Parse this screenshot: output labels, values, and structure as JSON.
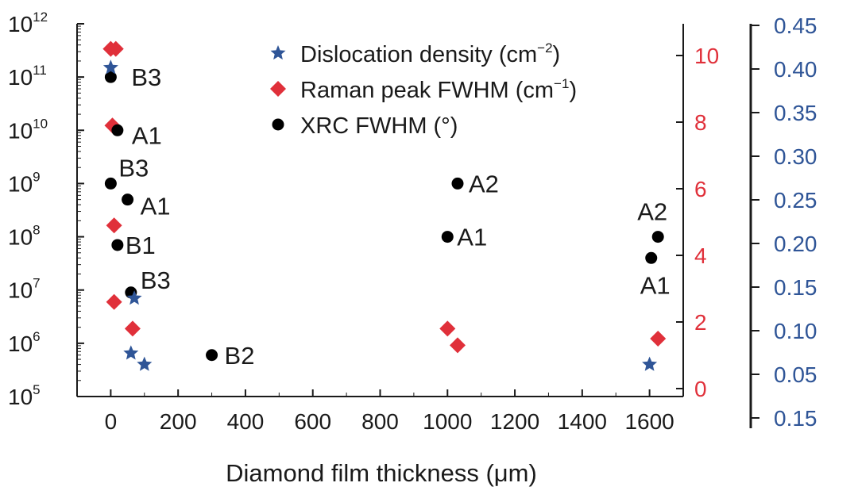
{
  "chart_data": {
    "type": "scatter",
    "title": "",
    "xlabel": "Diamond film thickness (μm)",
    "xlim": [
      -100,
      1700
    ],
    "x_ticks": [
      "0",
      "200",
      "400",
      "600",
      "800",
      "1000",
      "1200",
      "1400",
      "1600"
    ],
    "axes": {
      "left": {
        "scale": "log",
        "exp_ticks": [
          5,
          6,
          7,
          8,
          9,
          10,
          11,
          12
        ],
        "tick_base": "10",
        "color": "#1a1a1a"
      },
      "right": {
        "ylim": [
          0,
          11
        ],
        "ticks": [
          "0",
          "2",
          "4",
          "6",
          "8",
          "10"
        ],
        "color": "#e0303a"
      },
      "right_outer": {
        "ticks": [
          "0.15",
          "0.05",
          "0.10",
          "0.15",
          "0.20",
          "0.25",
          "0.30",
          "0.35",
          "0.40",
          "0.45"
        ],
        "color": "#2f5597"
      }
    },
    "legend": {
      "position": "top-center",
      "entries": [
        {
          "prefix": "Dislocation density (cm",
          "sup": "−2",
          "suffix": ")"
        },
        {
          "prefix": "Raman peak FWHM (cm",
          "sup": "−1",
          "suffix": ")"
        },
        {
          "prefix": "XRC FWHM (°)",
          "sup": "",
          "suffix": ""
        }
      ]
    },
    "series": [
      {
        "name": "Dislocation density",
        "axis": "left",
        "marker": "star",
        "color": "#2f5597",
        "points": [
          {
            "x": 0,
            "y": 150000000000
          },
          {
            "x": 70,
            "y": 7000000
          },
          {
            "x": 60,
            "y": 650000
          },
          {
            "x": 100,
            "y": 400000
          },
          {
            "x": 1600,
            "y": 400000
          }
        ]
      },
      {
        "name": "Raman peak FWHM",
        "axis": "right",
        "marker": "diamond",
        "color": "#e0303a",
        "points": [
          {
            "x": 0,
            "y": 10.2
          },
          {
            "x": 15,
            "y": 10.2
          },
          {
            "x": 5,
            "y": 7.9
          },
          {
            "x": 10,
            "y": 4.9
          },
          {
            "x": 10,
            "y": 2.6
          },
          {
            "x": 65,
            "y": 1.8
          },
          {
            "x": 1000,
            "y": 1.8
          },
          {
            "x": 1030,
            "y": 1.3
          },
          {
            "x": 1625,
            "y": 1.5
          }
        ]
      },
      {
        "name": "XRC FWHM",
        "axis": "left",
        "marker": "circle",
        "color": "#000000",
        "points": [
          {
            "x": 0,
            "y": 100000000000
          },
          {
            "x": 20,
            "y": 10000000000
          },
          {
            "x": 0,
            "y": 1000000000
          },
          {
            "x": 50,
            "y": 500000000
          },
          {
            "x": 20,
            "y": 70000000
          },
          {
            "x": 60,
            "y": 9000000
          },
          {
            "x": 300,
            "y": 600000
          },
          {
            "x": 1030,
            "y": 1000000000
          },
          {
            "x": 1000,
            "y": 100000000
          },
          {
            "x": 1625,
            "y": 100000000
          },
          {
            "x": 1605,
            "y": 40000000
          }
        ]
      }
    ],
    "annotations": [
      {
        "text": "B3",
        "x": 0,
        "y": 100000000000,
        "dx": 26,
        "dy": 0
      },
      {
        "text": "A1",
        "x": 20,
        "y": 10000000000,
        "dx": 18,
        "dy": 6
      },
      {
        "text": "B3",
        "x": 0,
        "y": 1000000000,
        "dx": 10,
        "dy": -20
      },
      {
        "text": "A1",
        "x": 50,
        "y": 500000000,
        "dx": 16,
        "dy": 8
      },
      {
        "text": "B1",
        "x": 20,
        "y": 70000000,
        "dx": 10,
        "dy": 0
      },
      {
        "text": "B3",
        "x": 60,
        "y": 9000000,
        "dx": 12,
        "dy": -16
      },
      {
        "text": "B2",
        "x": 300,
        "y": 600000,
        "dx": 16,
        "dy": 0
      },
      {
        "text": "A2",
        "x": 1030,
        "y": 1000000000,
        "dx": 14,
        "dy": 0
      },
      {
        "text": "A1",
        "x": 1000,
        "y": 100000000,
        "dx": 12,
        "dy": 0
      },
      {
        "text": "A2",
        "x": 1625,
        "y": 100000000,
        "dx": -26,
        "dy": -32
      },
      {
        "text": "A1",
        "x": 1605,
        "y": 40000000,
        "dx": -14,
        "dy": 34
      }
    ]
  }
}
